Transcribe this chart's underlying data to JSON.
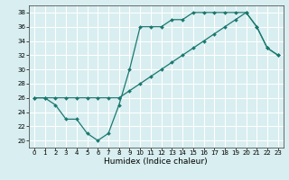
{
  "xlabel": "Humidex (Indice chaleur)",
  "ylabel": "",
  "bg_color": "#d8eef0",
  "grid_color": "#ffffff",
  "line_color": "#1a7870",
  "xlim": [
    -0.5,
    23.5
  ],
  "ylim": [
    19,
    39
  ],
  "xticks": [
    0,
    1,
    2,
    3,
    4,
    5,
    6,
    7,
    8,
    9,
    10,
    11,
    12,
    13,
    14,
    15,
    16,
    17,
    18,
    19,
    20,
    21,
    22,
    23
  ],
  "yticks": [
    20,
    22,
    24,
    26,
    28,
    30,
    32,
    34,
    36,
    38
  ],
  "line1_x": [
    0,
    1,
    2,
    3,
    4,
    5,
    6,
    7,
    8,
    9,
    10,
    11,
    12,
    13,
    14,
    15,
    16,
    17,
    18,
    19,
    20,
    21,
    22,
    23
  ],
  "line1_y": [
    26,
    26,
    25,
    23,
    23,
    21,
    20,
    21,
    25,
    30,
    36,
    36,
    36,
    37,
    37,
    38,
    38,
    38,
    38,
    38,
    38,
    36,
    33,
    32
  ],
  "line2_x": [
    0,
    1,
    2,
    3,
    4,
    5,
    6,
    7,
    8,
    9,
    10,
    11,
    12,
    13,
    14,
    15,
    16,
    17,
    18,
    19,
    20,
    21,
    22,
    23
  ],
  "line2_y": [
    26,
    26,
    26,
    26,
    26,
    26,
    26,
    26,
    26,
    27,
    28,
    29,
    30,
    31,
    32,
    33,
    34,
    35,
    36,
    37,
    38,
    36,
    33,
    32
  ],
  "marker_size": 2.0,
  "linewidth": 0.9,
  "tick_fontsize": 5.0,
  "xlabel_fontsize": 6.5
}
